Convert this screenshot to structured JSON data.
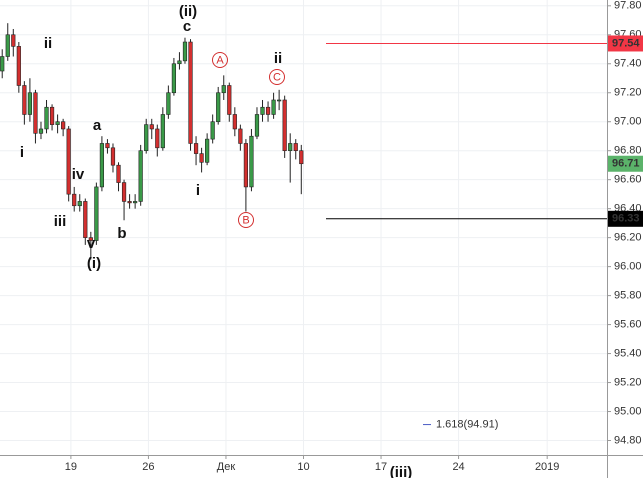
{
  "chart_data": {
    "type": "candlestick",
    "x": [
      12.8,
      13.3,
      13.8,
      14.3,
      14.8,
      15.3,
      15.8,
      16.3,
      16.8,
      17.3,
      17.8,
      18.3,
      18.8,
      19.3,
      19.8,
      20.3,
      20.8,
      21.3,
      21.8,
      22.3,
      22.8,
      23.3,
      23.8,
      24.3,
      24.8,
      25.3,
      25.8,
      26.3,
      26.8,
      27.3,
      27.8,
      28.3,
      28.8,
      29.3,
      29.8,
      30.3,
      30.8,
      31.3,
      31.8,
      32.3,
      32.8,
      33.3,
      33.8,
      34.3,
      34.8,
      35.3,
      35.8,
      36.3,
      36.8,
      37.3,
      37.8,
      38.3,
      38.8,
      39.3,
      39.8
    ],
    "open": [
      97.35,
      97.45,
      97.6,
      97.52,
      97.25,
      97.05,
      97.2,
      96.92,
      96.95,
      97.1,
      96.98,
      97.0,
      96.95,
      96.5,
      96.42,
      96.45,
      96.2,
      96.18,
      96.55,
      96.85,
      96.82,
      96.7,
      96.58,
      96.45,
      96.44,
      96.45,
      96.8,
      96.98,
      96.95,
      96.82,
      97.05,
      97.2,
      97.4,
      97.42,
      97.55,
      96.85,
      96.78,
      96.72,
      96.88,
      97.0,
      97.2,
      97.25,
      97.05,
      96.95,
      96.85,
      96.55,
      96.9,
      97.05,
      97.1,
      97.05,
      97.15,
      97.15,
      96.8,
      96.85,
      96.8
    ],
    "high": [
      97.5,
      97.68,
      97.64,
      97.55,
      97.28,
      97.3,
      97.22,
      97.0,
      97.15,
      97.12,
      97.05,
      97.02,
      96.97,
      96.55,
      96.5,
      96.47,
      96.24,
      96.58,
      96.9,
      96.88,
      96.85,
      96.72,
      96.6,
      96.5,
      96.5,
      96.84,
      97.02,
      97.02,
      96.98,
      97.1,
      97.25,
      97.44,
      97.48,
      97.58,
      97.57,
      96.9,
      96.82,
      96.92,
      97.05,
      97.24,
      97.32,
      97.27,
      97.1,
      96.98,
      96.88,
      96.95,
      97.1,
      97.15,
      97.14,
      97.2,
      97.22,
      97.18,
      96.92,
      96.88,
      96.84
    ],
    "low": [
      97.3,
      97.42,
      97.45,
      97.2,
      96.98,
      97.0,
      96.85,
      96.88,
      96.92,
      96.94,
      96.92,
      96.9,
      96.45,
      96.38,
      96.38,
      96.15,
      96.05,
      96.15,
      96.52,
      96.78,
      96.65,
      96.52,
      96.32,
      96.4,
      96.4,
      96.42,
      96.78,
      96.88,
      96.76,
      96.8,
      97.02,
      97.18,
      97.36,
      97.4,
      96.8,
      96.7,
      96.65,
      96.7,
      96.85,
      96.98,
      97.15,
      97.0,
      96.9,
      96.8,
      96.38,
      96.52,
      96.88,
      97.0,
      97.0,
      97.02,
      97.08,
      96.75,
      96.58,
      96.74,
      96.5
    ],
    "close": [
      97.45,
      97.6,
      97.52,
      97.25,
      97.05,
      97.2,
      96.92,
      96.95,
      97.1,
      96.98,
      97.0,
      96.95,
      96.5,
      96.42,
      96.45,
      96.2,
      96.18,
      96.55,
      96.85,
      96.82,
      96.7,
      96.58,
      96.45,
      96.44,
      96.45,
      96.8,
      96.98,
      96.95,
      96.82,
      97.05,
      97.2,
      97.4,
      97.42,
      97.55,
      96.85,
      96.78,
      96.72,
      96.88,
      97.0,
      97.2,
      97.25,
      97.05,
      96.95,
      96.85,
      96.55,
      96.9,
      97.05,
      97.1,
      97.05,
      97.15,
      97.15,
      96.8,
      96.85,
      96.8,
      96.71
    ],
    "up_color": "#3a9a48",
    "down_color": "#d32f2f",
    "xlim": [
      12.6,
      67.4
    ],
    "ylim": [
      94.7,
      97.84
    ],
    "xticks": [
      19,
      26,
      {
        "value": 33,
        "label": "Дек"
      },
      {
        "value": 40,
        "label": "10"
      },
      {
        "value": 47,
        "label": "17"
      },
      {
        "value": 54,
        "label": "24"
      },
      {
        "value": 62,
        "label": "2019"
      }
    ],
    "yticks": [
      {
        "value": 97.8,
        "label": "97.80"
      },
      {
        "value": 97.6,
        "label": "97.60"
      },
      {
        "value": 97.4,
        "label": "97.40"
      },
      {
        "value": 97.2,
        "label": "97.20"
      },
      {
        "value": 97.0,
        "label": "97.00"
      },
      {
        "value": 96.8,
        "label": "96.80"
      },
      {
        "value": 96.6,
        "label": "96.60"
      },
      {
        "value": 96.4,
        "label": "96.40"
      },
      {
        "value": 96.2,
        "label": "96.20"
      },
      {
        "value": 96.0,
        "label": "96.00"
      },
      {
        "value": 95.8,
        "label": "95.80"
      },
      {
        "value": 95.6,
        "label": "95.60"
      },
      {
        "value": 95.4,
        "label": "95.40"
      },
      {
        "value": 95.2,
        "label": "95.20"
      },
      {
        "value": 95.0,
        "label": "95.00"
      },
      {
        "value": 94.8,
        "label": "94.80"
      }
    ],
    "grid": true,
    "hlines": [
      {
        "value": 97.54,
        "color": "#f23645"
      },
      {
        "value": 96.33,
        "color": "#000000"
      }
    ],
    "last_price": {
      "value": 96.71,
      "color": "#5bb36a"
    },
    "annotations": [
      "(ii)",
      "c",
      "ii",
      "i",
      "iv",
      "iii",
      "a",
      "b",
      "v",
      "(i)",
      "i",
      "A",
      "B",
      "C",
      "ii",
      "(iii)"
    ],
    "fib": {
      "value": 94.91,
      "label": "1.618(94.91)",
      "color": "#4a5bc4"
    }
  }
}
